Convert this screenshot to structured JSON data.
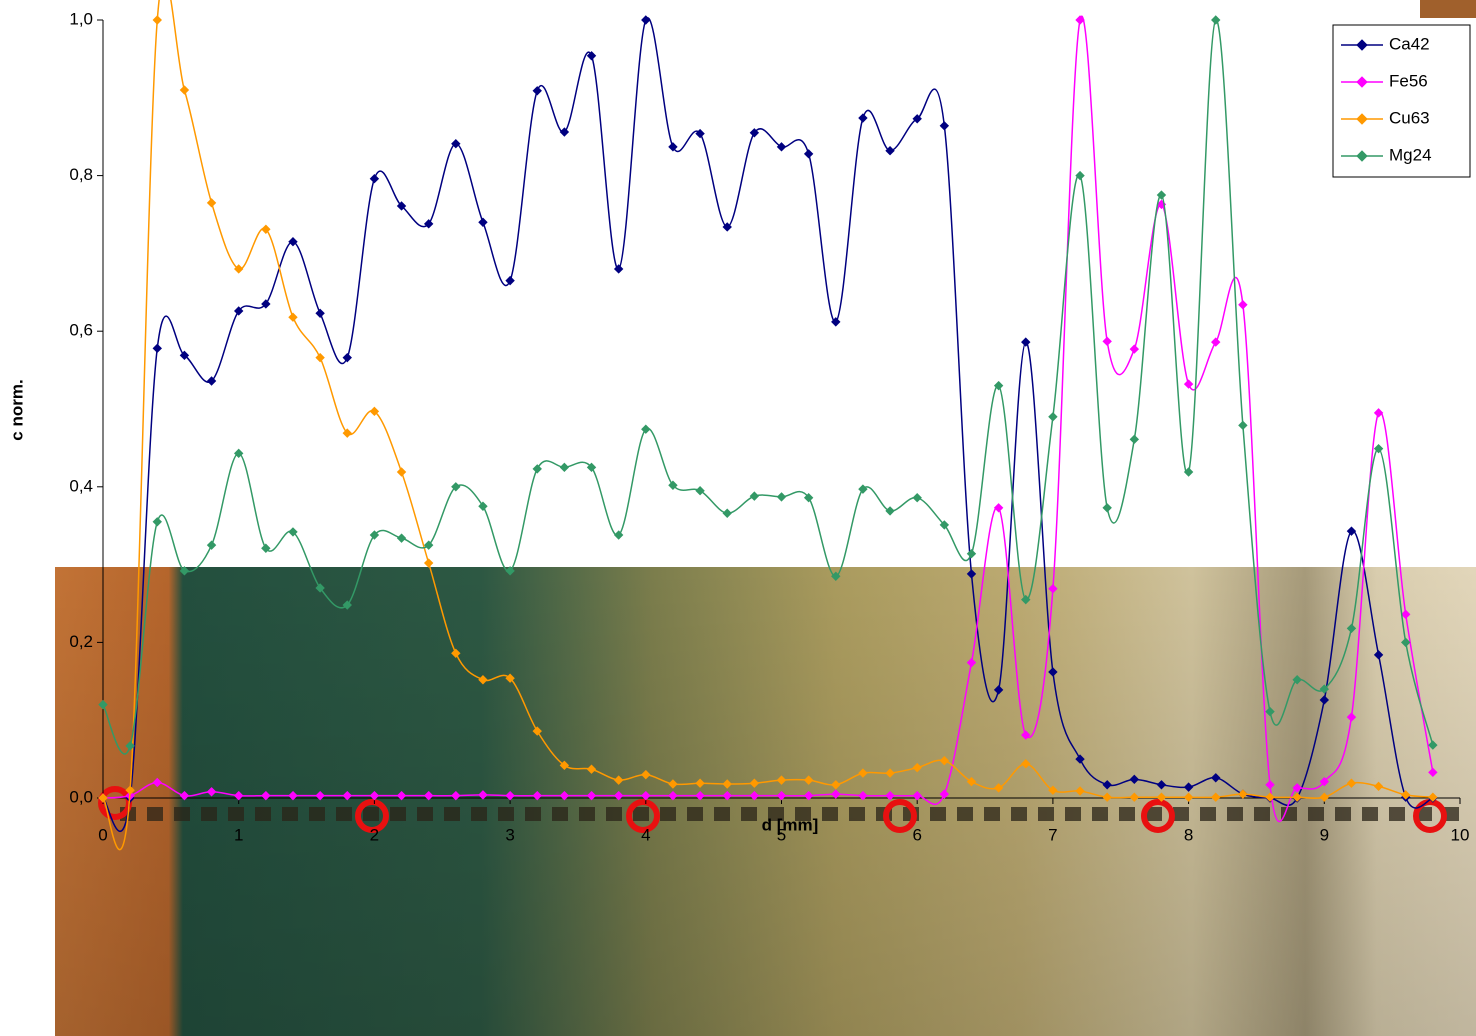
{
  "chart_data": {
    "type": "line",
    "xlabel": "d [mm]",
    "ylabel": "c norm.",
    "x": [
      0,
      0.2,
      0.4,
      0.6,
      0.8,
      1,
      1.2,
      1.4,
      1.6,
      1.8,
      2,
      2.2,
      2.4,
      2.6,
      2.8,
      3,
      3.2,
      3.4,
      3.6,
      3.8,
      4,
      4.2,
      4.4,
      4.6,
      4.8,
      5,
      5.2,
      5.4,
      5.6,
      5.8,
      6,
      6.2,
      6.4,
      6.6,
      6.8,
      7,
      7.2,
      7.4,
      7.6,
      7.8,
      8,
      8.2,
      8.4,
      8.6,
      8.8,
      9,
      9.2,
      9.4,
      9.6,
      9.8
    ],
    "series": [
      {
        "name": "Ca42",
        "color": "#000080",
        "values": [
          0,
          0,
          0.578,
          0.569,
          0.536,
          0.626,
          0.635,
          0.715,
          0.623,
          0.566,
          0.796,
          0.761,
          0.738,
          0.841,
          0.74,
          0.665,
          0.909,
          0.856,
          0.954,
          0.68,
          1,
          0.837,
          0.854,
          0.734,
          0.855,
          0.837,
          0.828,
          0.612,
          0.874,
          0.832,
          0.873,
          0.864,
          0.288,
          0.139,
          0.586,
          0.162,
          0.05,
          0.017,
          0.024,
          0.017,
          0.014,
          0.026,
          0.005,
          0,
          0,
          0.126,
          0.343,
          0.184,
          0.001,
          0
        ]
      },
      {
        "name": "Fe56",
        "color": "#ff00ff",
        "values": [
          0,
          0.003,
          0.02,
          0.003,
          0.008,
          0.003,
          0.003,
          0.003,
          0.003,
          0.003,
          0.003,
          0.003,
          0.003,
          0.003,
          0.004,
          0.003,
          0.003,
          0.003,
          0.003,
          0.003,
          0.003,
          0.003,
          0.003,
          0.003,
          0.003,
          0.003,
          0.003,
          0.005,
          0.003,
          0.003,
          0.003,
          0.005,
          0.174,
          0.373,
          0.081,
          0.269,
          1,
          0.587,
          0.577,
          0.763,
          0.532,
          0.586,
          0.634,
          0.017,
          0.013,
          0.021,
          0.104,
          0.495,
          0.236,
          0.033
        ]
      },
      {
        "name": "Cu63",
        "color": "#ff9900",
        "values": [
          0,
          0.01,
          1,
          0.91,
          0.765,
          0.68,
          0.731,
          0.618,
          0.566,
          0.469,
          0.497,
          0.419,
          0.302,
          0.186,
          0.152,
          0.154,
          0.086,
          0.042,
          0.037,
          0.023,
          0.03,
          0.018,
          0.019,
          0.018,
          0.019,
          0.023,
          0.023,
          0.017,
          0.032,
          0.032,
          0.039,
          0.048,
          0.021,
          0.013,
          0.044,
          0.01,
          0.009,
          0.001,
          0.001,
          0.001,
          0.001,
          0.001,
          0.005,
          0.001,
          0.001,
          0.001,
          0.019,
          0.015,
          0.004,
          0.001
        ]
      },
      {
        "name": "Mg24",
        "color": "#339966",
        "values": [
          0.12,
          0.067,
          0.355,
          0.292,
          0.325,
          0.443,
          0.321,
          0.342,
          0.27,
          0.248,
          0.338,
          0.334,
          0.325,
          0.4,
          0.375,
          0.292,
          0.423,
          0.425,
          0.425,
          0.338,
          0.474,
          0.402,
          0.395,
          0.366,
          0.388,
          0.387,
          0.386,
          0.285,
          0.397,
          0.369,
          0.386,
          0.351,
          0.314,
          0.53,
          0.255,
          0.49,
          0.8,
          0.373,
          0.461,
          0.775,
          0.419,
          1,
          0.479,
          0.111,
          0.152,
          0.14,
          0.218,
          0.449,
          0.2,
          0.068
        ]
      }
    ],
    "xlim": [
      0,
      10
    ],
    "xticks": [
      0,
      1,
      2,
      3,
      4,
      5,
      6,
      7,
      8,
      9,
      10
    ],
    "ylim": [
      0,
      1
    ],
    "yticks": [
      {
        "value": 0,
        "label": "0,0"
      },
      {
        "value": 0.2,
        "label": "0,2"
      },
      {
        "value": 0.4,
        "label": "0,4"
      },
      {
        "value": 0.6,
        "label": "0,6"
      },
      {
        "value": 0.8,
        "label": "0,8"
      },
      {
        "value": 1,
        "label": "1,0"
      }
    ],
    "legend": "top-right",
    "smooth": true
  }
}
